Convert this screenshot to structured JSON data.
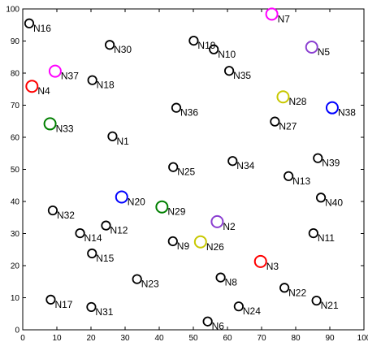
{
  "chart_data": {
    "type": "scatter",
    "xlim": [
      0,
      100
    ],
    "ylim": [
      0,
      100
    ],
    "x_ticks": [
      "0",
      "10",
      "20",
      "30",
      "40",
      "50",
      "60",
      "70",
      "80",
      "90",
      "100"
    ],
    "y_ticks": [
      "0",
      "10",
      "20",
      "30",
      "40",
      "50",
      "60",
      "70",
      "80",
      "90",
      "100"
    ],
    "grid": false,
    "colors": {
      "black": "#000000",
      "magenta": "#ff00ff",
      "purple": "#8b3fd1",
      "red": "#ff0000",
      "olive": "#c8c800",
      "green": "#007f00",
      "blue": "#0000ff"
    },
    "points": [
      {
        "label": "N1",
        "x": 26.3,
        "y": 60.3,
        "color": "black"
      },
      {
        "label": "N2",
        "x": 57.0,
        "y": 33.7,
        "color": "purple"
      },
      {
        "label": "N3",
        "x": 69.7,
        "y": 21.3,
        "color": "red"
      },
      {
        "label": "N4",
        "x": 2.7,
        "y": 75.9,
        "color": "red"
      },
      {
        "label": "N5",
        "x": 84.7,
        "y": 88.1,
        "color": "purple"
      },
      {
        "label": "N6",
        "x": 54.2,
        "y": 2.6,
        "color": "black"
      },
      {
        "label": "N7",
        "x": 73.0,
        "y": 98.4,
        "color": "magenta"
      },
      {
        "label": "N8",
        "x": 58.0,
        "y": 16.3,
        "color": "black"
      },
      {
        "label": "N9",
        "x": 44.0,
        "y": 27.6,
        "color": "black"
      },
      {
        "label": "N10",
        "x": 56.0,
        "y": 87.4,
        "color": "black"
      },
      {
        "label": "N11",
        "x": 85.2,
        "y": 30.1,
        "color": "black"
      },
      {
        "label": "N12",
        "x": 24.4,
        "y": 32.5,
        "color": "black"
      },
      {
        "label": "N13",
        "x": 77.9,
        "y": 47.9,
        "color": "black"
      },
      {
        "label": "N14",
        "x": 16.8,
        "y": 30.1,
        "color": "black"
      },
      {
        "label": "N15",
        "x": 20.3,
        "y": 23.8,
        "color": "black"
      },
      {
        "label": "N16",
        "x": 1.9,
        "y": 95.5,
        "color": "black"
      },
      {
        "label": "N17",
        "x": 8.2,
        "y": 9.4,
        "color": "black"
      },
      {
        "label": "N18",
        "x": 20.4,
        "y": 77.8,
        "color": "black"
      },
      {
        "label": "N19",
        "x": 50.1,
        "y": 90.1,
        "color": "black"
      },
      {
        "label": "N20",
        "x": 29.0,
        "y": 41.4,
        "color": "blue"
      },
      {
        "label": "N21",
        "x": 86.1,
        "y": 9.1,
        "color": "black"
      },
      {
        "label": "N22",
        "x": 76.7,
        "y": 13.1,
        "color": "black"
      },
      {
        "label": "N23",
        "x": 33.5,
        "y": 15.8,
        "color": "black"
      },
      {
        "label": "N24",
        "x": 63.3,
        "y": 7.3,
        "color": "black"
      },
      {
        "label": "N25",
        "x": 44.1,
        "y": 50.7,
        "color": "black"
      },
      {
        "label": "N26",
        "x": 52.1,
        "y": 27.4,
        "color": "olive"
      },
      {
        "label": "N27",
        "x": 73.9,
        "y": 64.9,
        "color": "black"
      },
      {
        "label": "N28",
        "x": 76.3,
        "y": 72.6,
        "color": "olive"
      },
      {
        "label": "N29",
        "x": 40.8,
        "y": 38.3,
        "color": "green"
      },
      {
        "label": "N30",
        "x": 25.5,
        "y": 88.8,
        "color": "black"
      },
      {
        "label": "N31",
        "x": 20.1,
        "y": 7.1,
        "color": "black"
      },
      {
        "label": "N32",
        "x": 8.8,
        "y": 37.2,
        "color": "black"
      },
      {
        "label": "N33",
        "x": 8.0,
        "y": 64.2,
        "color": "green"
      },
      {
        "label": "N34",
        "x": 61.5,
        "y": 52.6,
        "color": "black"
      },
      {
        "label": "N35",
        "x": 60.5,
        "y": 80.7,
        "color": "black"
      },
      {
        "label": "N36",
        "x": 45.0,
        "y": 69.2,
        "color": "black"
      },
      {
        "label": "N37",
        "x": 9.5,
        "y": 80.6,
        "color": "magenta"
      },
      {
        "label": "N38",
        "x": 90.7,
        "y": 69.2,
        "color": "blue"
      },
      {
        "label": "N39",
        "x": 86.5,
        "y": 53.5,
        "color": "black"
      },
      {
        "label": "N40",
        "x": 87.4,
        "y": 41.2,
        "color": "black"
      }
    ]
  }
}
